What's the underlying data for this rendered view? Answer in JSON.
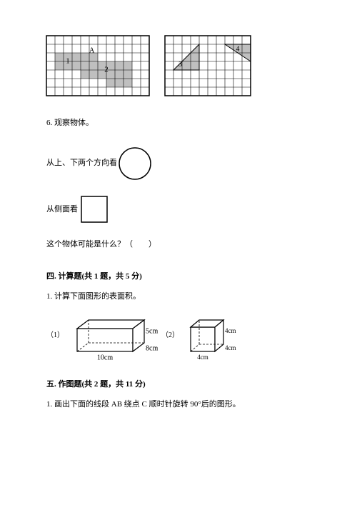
{
  "page": {
    "background_color": "#ffffff",
    "text_color": "#000000",
    "font_family": "SimSun"
  },
  "grid_left": {
    "type": "grid-shape",
    "cols": 12,
    "rows": 7,
    "cell": 12,
    "stroke": "#000000",
    "shape_fill": "#bfbfbf",
    "label_color": "#000000",
    "labels": {
      "A": "A",
      "one": "1",
      "two": "2"
    },
    "shape_cells_rows": [
      {
        "row": 2,
        "from": 1,
        "to": 5
      },
      {
        "row": 3,
        "from": 1,
        "to": 9
      },
      {
        "row": 4,
        "from": 4,
        "to": 9
      },
      {
        "row": 5,
        "from": 7,
        "to": 9
      }
    ]
  },
  "grid_right": {
    "type": "grid-triangles",
    "cols": 10,
    "rows": 7,
    "cell": 12,
    "stroke": "#000000",
    "fill": "#bfbfbf",
    "labels": {
      "three": "3",
      "four": "4"
    },
    "tri_left": {
      "ox": 1,
      "oy": 4,
      "w": 3,
      "h": 3
    },
    "tri_right": {
      "ox": 7,
      "oy": 1,
      "w": 3,
      "h": 2
    }
  },
  "q6": {
    "title": "6. 观察物体。",
    "view_top_front": "从上、下两个方向看",
    "view_side": "从侧面看",
    "question": "这个物体可能是什么？（　　）",
    "circle": {
      "r": 22,
      "stroke": "#000000",
      "stroke_width": 1.5,
      "fill": "none"
    },
    "square": {
      "s": 36,
      "stroke": "#000000",
      "stroke_width": 1.5,
      "fill": "none"
    }
  },
  "section4": {
    "heading": "四. 计算题(共 1 题，共 5 分)",
    "q1": "1. 计算下面图形的表面积。",
    "label1": "（1）",
    "label2": "（2）",
    "box": {
      "type": "cuboid",
      "length_label": "10cm",
      "width_label": "8cm",
      "height_label": "5cm",
      "stroke": "#000000",
      "fill": "#ffffff"
    },
    "cube": {
      "type": "cube",
      "edge_label": "4cm",
      "stroke": "#000000",
      "fill": "#ffffff"
    }
  },
  "section5": {
    "heading": "五. 作图题(共 2 题，共 11 分)",
    "q1": "1. 画出下面的线段 AB 绕点 C 顺时针旋转 90°后的图形。"
  }
}
